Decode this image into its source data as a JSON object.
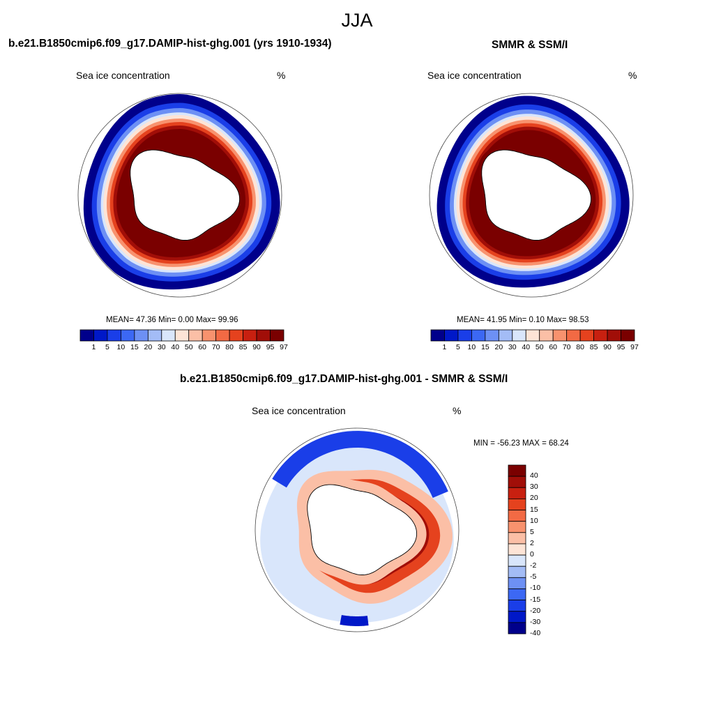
{
  "figure": {
    "title": "JJA"
  },
  "colors": {
    "abs_scale": [
      "#00008b",
      "#0018c8",
      "#1a3ee8",
      "#3c68f4",
      "#6d90f4",
      "#a3bcf6",
      "#d9e6fb",
      "#fde4d6",
      "#fbbfa6",
      "#f8926e",
      "#f26a44",
      "#e5421e",
      "#c82010",
      "#a10e08",
      "#7a0000"
    ],
    "diff_scale": [
      "#00008b",
      "#0018c8",
      "#1a3ee8",
      "#3c68f4",
      "#6d90f4",
      "#a3bcf6",
      "#d9e6fb",
      "#fde4d6",
      "#fbbfa6",
      "#f8926e",
      "#f26a44",
      "#e5421e",
      "#c82010",
      "#a10e08",
      "#7a0000"
    ]
  },
  "chart_data": [
    {
      "type": "heatmap",
      "title": "b.e21.B1850cmip6.f09_g17.DAMIP-hist-ghg.001 (yrs 1910-1934)",
      "left_label": "Sea ice concentration",
      "right_label": "%",
      "projection": "south-polar-stereographic",
      "stats": {
        "mean": "47.36",
        "min": "0.00",
        "max": "99.96"
      },
      "stats_text": "MEAN=  47.36  Min=   0.00  Max=  99.96",
      "colorbar_levels": [
        1,
        5,
        10,
        15,
        20,
        30,
        40,
        50,
        60,
        70,
        80,
        85,
        90,
        95,
        97
      ],
      "colorbar_orientation": "horizontal"
    },
    {
      "type": "heatmap",
      "title": "SMMR & SSM/I",
      "left_label": "Sea ice concentration",
      "right_label": "%",
      "projection": "south-polar-stereographic",
      "stats": {
        "mean": "41.95",
        "min": "0.10",
        "max": "98.53"
      },
      "stats_text": "MEAN=  41.95  Min=   0.10  Max=  98.53",
      "colorbar_levels": [
        1,
        5,
        10,
        15,
        20,
        30,
        40,
        50,
        60,
        70,
        80,
        85,
        90,
        95,
        97
      ],
      "colorbar_orientation": "horizontal"
    },
    {
      "type": "heatmap",
      "title": "b.e21.B1850cmip6.f09_g17.DAMIP-hist-ghg.001 - SMMR & SSM/I",
      "left_label": "Sea ice concentration",
      "right_label": "%",
      "projection": "south-polar-stereographic",
      "stats": {
        "min": "-56.23",
        "max": "68.24"
      },
      "stats_text": "MIN = -56.23 MAX =  68.24",
      "colorbar_levels": [
        40,
        30,
        20,
        15,
        10,
        5,
        2,
        0,
        -2,
        -5,
        -10,
        -15,
        -20,
        -30,
        -40
      ],
      "colorbar_orientation": "vertical"
    }
  ]
}
